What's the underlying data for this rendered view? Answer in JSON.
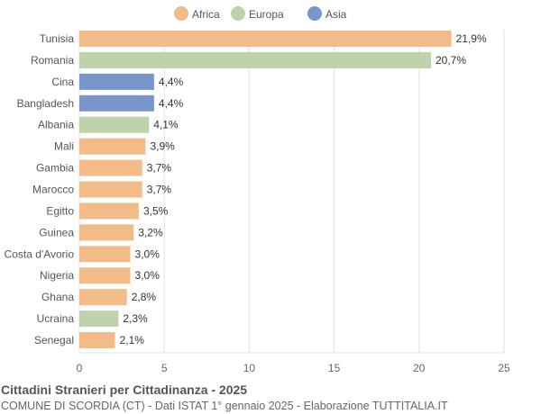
{
  "chart_data": {
    "type": "bar",
    "orientation": "horizontal",
    "title": "Cittadini Stranieri per Cittadinanza - 2025",
    "subtitle": "COMUNE DI SCORDIA (CT) - Dati ISTAT 1° gennaio 2025 - Elaborazione TUTTITALIA.IT",
    "legend": {
      "placement": "top",
      "entries": [
        {
          "name": "Africa",
          "color": "#f2bb88"
        },
        {
          "name": "Europa",
          "color": "#bfd3ab"
        },
        {
          "name": "Asia",
          "color": "#7896cc"
        }
      ]
    },
    "categories": [
      "Tunisia",
      "Romania",
      "Cina",
      "Bangladesh",
      "Albania",
      "Mali",
      "Gambia",
      "Marocco",
      "Egitto",
      "Guinea",
      "Costa d'Avorio",
      "Nigeria",
      "Ghana",
      "Ucraina",
      "Senegal"
    ],
    "values": [
      21.9,
      20.7,
      4.4,
      4.4,
      4.1,
      3.9,
      3.7,
      3.7,
      3.5,
      3.2,
      3.0,
      3.0,
      2.8,
      2.3,
      2.1
    ],
    "labels": [
      "21,9%",
      "20,7%",
      "4,4%",
      "4,4%",
      "4,1%",
      "3,9%",
      "3,7%",
      "3,7%",
      "3,5%",
      "3,2%",
      "3,0%",
      "3,0%",
      "2,8%",
      "2,3%",
      "2,1%"
    ],
    "groups": [
      "Africa",
      "Europa",
      "Asia",
      "Asia",
      "Europa",
      "Africa",
      "Africa",
      "Africa",
      "Africa",
      "Africa",
      "Africa",
      "Africa",
      "Africa",
      "Europa",
      "Africa"
    ],
    "xlim": [
      0,
      25
    ],
    "xticks": [
      0,
      5,
      10,
      15,
      20,
      25
    ],
    "grid": true
  }
}
